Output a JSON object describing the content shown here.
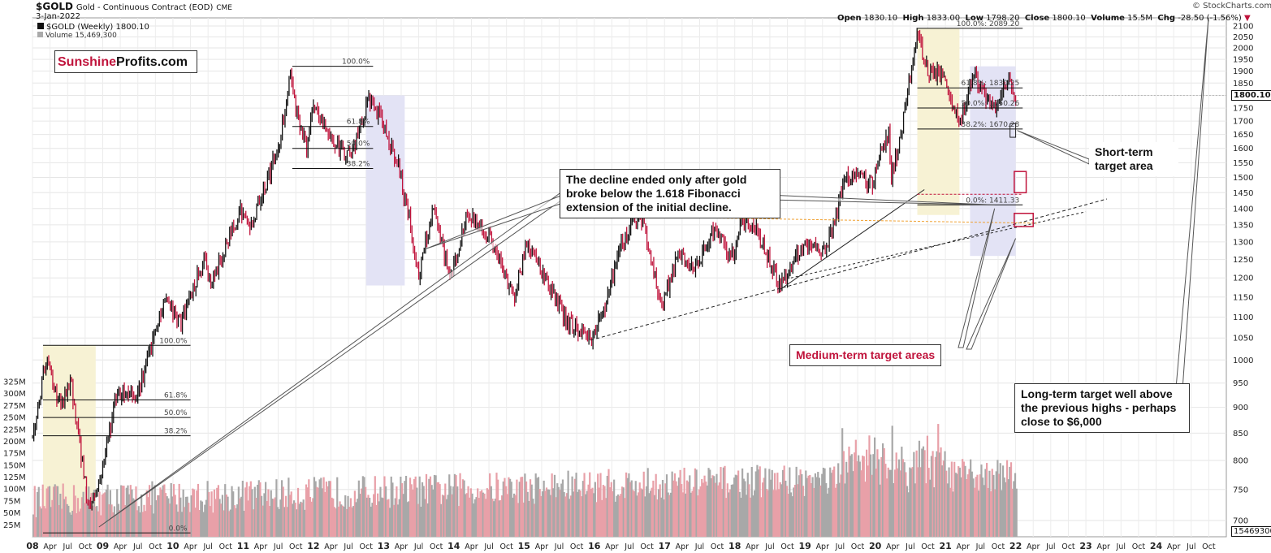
{
  "header": {
    "symbol": "$GOLD",
    "name": "Gold - Continuous Contract (EOD)",
    "exchange": "CME",
    "date": "3-Jan-2022",
    "series_label": "$GOLD (Weekly) 1800.10",
    "volume_label": "Volume 15,469,300",
    "ohlc": {
      "open_label": "Open",
      "open": "1830.10",
      "high_label": "High",
      "high": "1833.00",
      "low_label": "Low",
      "low": "1798.20",
      "close_label": "Close",
      "close": "1800.10",
      "volume_label": "Volume",
      "volume": "15.5M",
      "chg_label": "Chg",
      "chg": "-28.50 (-1.56%)"
    },
    "watermark": "© StockCharts.com"
  },
  "logo": {
    "part1": "Sunshine",
    "part2": "Profits.com"
  },
  "callouts": {
    "decline": "The decline ended only after gold broke below the 1.618 Fibonacci extension of the initial decline.",
    "short_term": "Short-term target area",
    "medium_term": "Medium-term target areas",
    "long_term": "Long-term target well above the previous highs - perhaps close to $6,000"
  },
  "colors": {
    "up": "#111111",
    "down": "#c0143c",
    "vol_up": "#a8a8a8",
    "vol_down": "#e8a0a8",
    "highlight_yellow": "#f7f2d4",
    "highlight_blue": "#e3e3f5",
    "accent_red": "#c0143c",
    "orange_dotted": "#f0a030"
  },
  "chart_data": {
    "type": "line",
    "title": "$GOLD (Weekly) 1800.10",
    "price_axis": {
      "ticks": [
        "2100",
        "2050",
        "2000",
        "1950",
        "1900",
        "1850",
        "1800",
        "1750",
        "1700",
        "1650",
        "1600",
        "1550",
        "1500",
        "1450",
        "1400",
        "1350",
        "1300",
        "1250",
        "1200",
        "1150",
        "1100",
        "1050",
        "1000",
        "950",
        "900",
        "850",
        "800",
        "750",
        "700"
      ],
      "current_price_label": "1800.10"
    },
    "volume_axis": {
      "ticks": [
        "325M",
        "300M",
        "275M",
        "250M",
        "225M",
        "200M",
        "175M",
        "150M",
        "125M",
        "100M",
        "75M",
        "50M",
        "25M"
      ],
      "current_volume_label": "15469300"
    },
    "x_axis": {
      "labels": [
        "08",
        "Apr",
        "Jul",
        "Oct",
        "09",
        "Apr",
        "Jul",
        "Oct",
        "10",
        "Apr",
        "Jul",
        "Oct",
        "11",
        "Apr",
        "Jul",
        "Oct",
        "12",
        "Apr",
        "Jul",
        "Oct",
        "13",
        "Apr",
        "Jul",
        "Oct",
        "14",
        "Apr",
        "Jul",
        "Oct",
        "15",
        "Apr",
        "Jul",
        "Oct",
        "16",
        "Apr",
        "Jul",
        "Oct",
        "17",
        "Apr",
        "Jul",
        "Oct",
        "18",
        "Apr",
        "Jul",
        "Oct",
        "19",
        "Apr",
        "Jul",
        "Oct",
        "20",
        "Apr",
        "Jul",
        "Oct",
        "21",
        "Apr",
        "Jul",
        "Oct",
        "22",
        "Apr",
        "Jul",
        "Oct",
        "23",
        "Apr",
        "Jul",
        "Oct",
        "24",
        "Apr",
        "Jul",
        "Oct"
      ]
    },
    "price_path": [
      [
        2008.0,
        840
      ],
      [
        2008.2,
        1000
      ],
      [
        2008.4,
        900
      ],
      [
        2008.55,
        950
      ],
      [
        2008.8,
        720
      ],
      [
        2008.95,
        760
      ],
      [
        2009.2,
        930
      ],
      [
        2009.5,
        930
      ],
      [
        2009.9,
        1150
      ],
      [
        2010.1,
        1080
      ],
      [
        2010.45,
        1250
      ],
      [
        2010.55,
        1180
      ],
      [
        2010.95,
        1400
      ],
      [
        2011.1,
        1340
      ],
      [
        2011.35,
        1500
      ],
      [
        2011.5,
        1600
      ],
      [
        2011.68,
        1900
      ],
      [
        2011.75,
        1750
      ],
      [
        2011.9,
        1600
      ],
      [
        2012.0,
        1750
      ],
      [
        2012.35,
        1600
      ],
      [
        2012.55,
        1580
      ],
      [
        2012.8,
        1790
      ],
      [
        2013.0,
        1680
      ],
      [
        2013.2,
        1550
      ],
      [
        2013.38,
        1350
      ],
      [
        2013.5,
        1200
      ],
      [
        2013.7,
        1400
      ],
      [
        2013.95,
        1200
      ],
      [
        2014.2,
        1380
      ],
      [
        2014.5,
        1320
      ],
      [
        2014.85,
        1150
      ],
      [
        2015.05,
        1300
      ],
      [
        2015.3,
        1200
      ],
      [
        2015.6,
        1090
      ],
      [
        2015.95,
        1050
      ],
      [
        2016.1,
        1100
      ],
      [
        2016.35,
        1270
      ],
      [
        2016.55,
        1370
      ],
      [
        2016.7,
        1350
      ],
      [
        2016.95,
        1130
      ],
      [
        2017.2,
        1260
      ],
      [
        2017.45,
        1220
      ],
      [
        2017.7,
        1340
      ],
      [
        2017.95,
        1250
      ],
      [
        2018.1,
        1360
      ],
      [
        2018.3,
        1340
      ],
      [
        2018.65,
        1180
      ],
      [
        2018.95,
        1280
      ],
      [
        2019.3,
        1280
      ],
      [
        2019.6,
        1510
      ],
      [
        2019.95,
        1480
      ],
      [
        2020.2,
        1680
      ],
      [
        2020.22,
        1480
      ],
      [
        2020.4,
        1700
      ],
      [
        2020.6,
        2069
      ],
      [
        2020.75,
        1900
      ],
      [
        2020.95,
        1880
      ],
      [
        2021.2,
        1680
      ],
      [
        2021.4,
        1900
      ],
      [
        2021.6,
        1760
      ],
      [
        2021.75,
        1760
      ],
      [
        2021.9,
        1860
      ],
      [
        2022.0,
        1800.1
      ]
    ],
    "fibonacci_sets": [
      {
        "period": "2008",
        "levels": [
          {
            "label": "100.0%",
            "price": 1033
          },
          {
            "label": "61.8%",
            "price": 915
          },
          {
            "label": "50.0%",
            "price": 880
          },
          {
            "label": "38.2%",
            "price": 845
          },
          {
            "label": "0.0%",
            "price": 681
          }
        ]
      },
      {
        "period": "2011-2013",
        "levels": [
          {
            "label": "100.0%",
            "price": 1920
          },
          {
            "label": "61.8%",
            "price": 1680
          },
          {
            "label": "50.0%",
            "price": 1600
          },
          {
            "label": "38.2%",
            "price": 1530
          }
        ]
      },
      {
        "period": "2020-2021",
        "levels": [
          {
            "label": "100.0%: 2089.20",
            "price": 2089.2
          },
          {
            "label": "61.8%: 1830.25",
            "price": 1830.25
          },
          {
            "label": "50.0%: 1750.26",
            "price": 1750.26
          },
          {
            "label": "38.2%: 1670.28",
            "price": 1670.28
          },
          {
            "label": "0.0%: 1411.33",
            "price": 1411.33
          }
        ]
      }
    ],
    "grid": true,
    "legend": "top-left"
  }
}
